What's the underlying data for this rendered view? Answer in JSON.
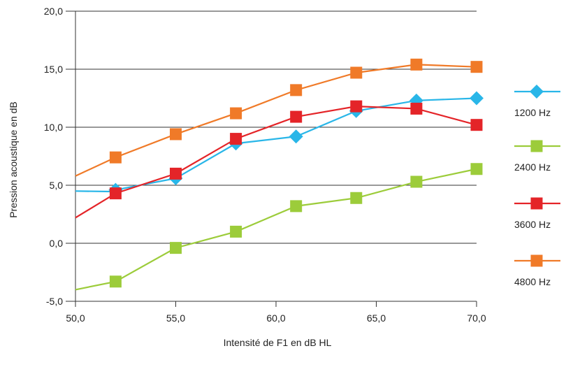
{
  "chart_data": {
    "type": "line",
    "title": "",
    "xlabel": "Intensité de F1 en dB HL",
    "ylabel": "Pression acoustique en dB",
    "xlim": [
      50,
      70
    ],
    "ylim": [
      -5,
      20
    ],
    "x_ticks": [
      50,
      55,
      60,
      65,
      70
    ],
    "y_ticks": [
      -5,
      0,
      5,
      10,
      15,
      20
    ],
    "x_tick_labels": [
      "50,0",
      "55,0",
      "60,0",
      "65,0",
      "70,0"
    ],
    "y_tick_labels": [
      "-5,0",
      "0,0",
      "5,0",
      "10,0",
      "15,0",
      "20,0"
    ],
    "grid": "horizontal",
    "legend_position": "right",
    "series": [
      {
        "name": "1200 Hz",
        "color": "#29b6e8",
        "marker": "diamond",
        "line": [
          [
            50.0,
            4.5
          ],
          [
            52.0,
            4.45
          ]
        ],
        "points": [
          [
            52.0,
            4.6
          ],
          [
            55.0,
            5.6
          ],
          [
            58.0,
            8.6
          ],
          [
            61.0,
            9.2
          ],
          [
            64.0,
            11.4
          ],
          [
            67.0,
            12.3
          ],
          [
            70.0,
            12.5
          ]
        ]
      },
      {
        "name": "2400 Hz",
        "color": "#9ccc3a",
        "marker": "square",
        "line": [
          [
            50.0,
            -4.0
          ]
        ],
        "points": [
          [
            52.0,
            -3.3
          ],
          [
            55.0,
            -0.4
          ],
          [
            58.0,
            1.0
          ],
          [
            61.0,
            3.2
          ],
          [
            64.0,
            3.9
          ],
          [
            67.0,
            5.3
          ],
          [
            70.0,
            6.4
          ]
        ]
      },
      {
        "name": "3600 Hz",
        "color": "#e42428",
        "marker": "square",
        "line": [
          [
            50.0,
            2.2
          ]
        ],
        "points": [
          [
            52.0,
            4.3
          ],
          [
            55.0,
            6.0
          ],
          [
            58.0,
            9.0
          ],
          [
            61.0,
            10.9
          ],
          [
            64.0,
            11.8
          ],
          [
            67.0,
            11.6
          ],
          [
            70.0,
            10.2
          ]
        ]
      },
      {
        "name": "4800 Hz",
        "color": "#f07a28",
        "marker": "square",
        "line": [
          [
            50.0,
            5.8
          ]
        ],
        "points": [
          [
            52.0,
            7.4
          ],
          [
            55.0,
            9.4
          ],
          [
            58.0,
            11.2
          ],
          [
            61.0,
            13.2
          ],
          [
            64.0,
            14.7
          ],
          [
            67.0,
            15.4
          ],
          [
            70.0,
            15.2
          ]
        ]
      }
    ]
  }
}
